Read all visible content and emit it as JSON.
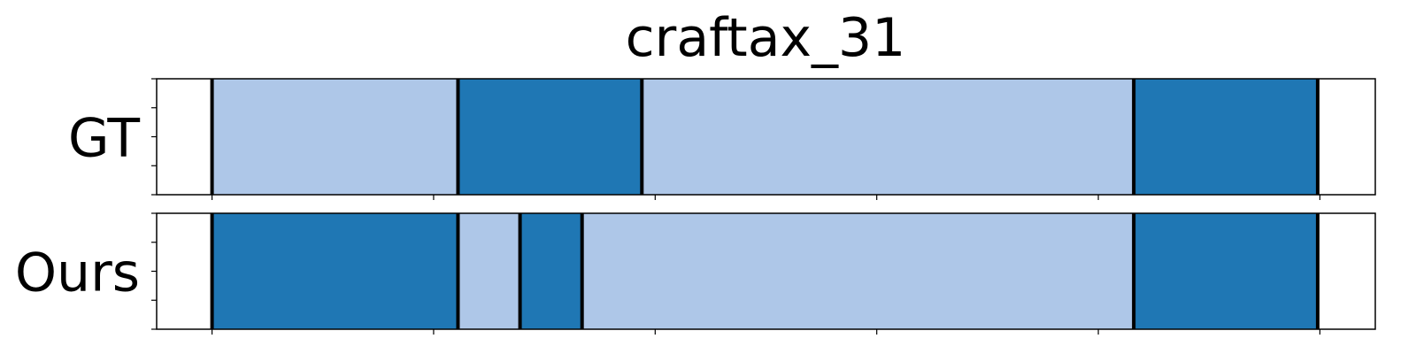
{
  "chart_data": {
    "type": "bar",
    "title": "craftax_31",
    "rows": [
      {
        "label": "GT",
        "segments": [
          {
            "start": 0,
            "end": 111,
            "class": "light"
          },
          {
            "start": 111,
            "end": 194,
            "class": "dark"
          },
          {
            "start": 194,
            "end": 416,
            "class": "light"
          },
          {
            "start": 416,
            "end": 499,
            "class": "dark"
          }
        ]
      },
      {
        "label": "Ours",
        "segments": [
          {
            "start": 0,
            "end": 111,
            "class": "dark"
          },
          {
            "start": 111,
            "end": 139,
            "class": "light"
          },
          {
            "start": 139,
            "end": 167,
            "class": "dark"
          },
          {
            "start": 167,
            "end": 416,
            "class": "light"
          },
          {
            "start": 416,
            "end": 499,
            "class": "dark"
          }
        ]
      }
    ],
    "xlim": [
      -25,
      525
    ],
    "xticks": [
      0,
      100,
      200,
      300,
      400,
      500
    ],
    "xtick_labels_visible": false,
    "ytick_labels_visible": false,
    "colors": {
      "light": "#aec7e8",
      "dark": "#1f77b4",
      "boundary": "#000000"
    },
    "grid": false,
    "legend": "none"
  }
}
